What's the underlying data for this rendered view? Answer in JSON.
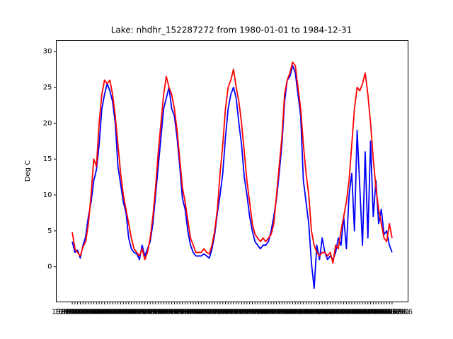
{
  "chart_data": {
    "type": "line",
    "title": "Lake: nhdhr_152287272 from 1980-01-01 to 1984-12-31",
    "y_label": "Deg C",
    "categories": [
      "1980-01-01",
      "1980-01-16",
      "1980-02-01",
      "1980-02-16",
      "1980-03-01",
      "1980-03-16",
      "1980-04-01",
      "1980-04-16",
      "1980-05-01",
      "1980-05-16",
      "1980-06-01",
      "1980-06-16",
      "1980-07-01",
      "1980-07-16",
      "1980-08-01",
      "1980-08-16",
      "1980-09-01",
      "1980-09-16",
      "1980-10-01",
      "1980-10-16",
      "1980-11-01",
      "1980-11-16",
      "1980-12-01",
      "1980-12-16",
      "1981-01-01",
      "1981-01-16",
      "1981-02-01",
      "1981-02-16",
      "1981-03-01",
      "1981-03-16",
      "1981-04-01",
      "1981-04-16",
      "1981-05-01",
      "1981-05-16",
      "1981-06-01",
      "1981-06-16",
      "1981-07-01",
      "1981-07-16",
      "1981-08-01",
      "1981-08-16",
      "1981-09-01",
      "1981-09-16",
      "1981-10-01",
      "1981-10-16",
      "1981-11-01",
      "1981-11-16",
      "1981-12-01",
      "1981-12-16",
      "1982-01-01",
      "1982-01-16",
      "1982-02-01",
      "1982-02-16",
      "1982-03-01",
      "1982-03-16",
      "1982-04-01",
      "1982-04-16",
      "1982-05-01",
      "1982-05-16",
      "1982-06-01",
      "1982-06-16",
      "1982-07-01",
      "1982-07-16",
      "1982-08-01",
      "1982-08-16",
      "1982-09-01",
      "1982-09-16",
      "1982-10-01",
      "1982-10-16",
      "1982-11-01",
      "1982-11-16",
      "1982-12-01",
      "1982-12-16",
      "1983-01-01",
      "1983-01-16",
      "1983-02-01",
      "1983-02-16",
      "1983-03-01",
      "1983-03-16",
      "1983-04-01",
      "1983-04-16",
      "1983-05-01",
      "1983-05-16",
      "1983-06-01",
      "1983-06-16",
      "1983-07-01",
      "1983-07-16",
      "1983-08-01",
      "1983-08-16",
      "1983-09-01",
      "1983-09-16",
      "1983-10-01",
      "1983-10-16",
      "1983-11-01",
      "1983-11-16",
      "1983-12-01",
      "1983-12-16",
      "1984-01-01",
      "1984-01-16",
      "1984-02-01",
      "1984-02-16",
      "1984-03-01",
      "1984-03-16",
      "1984-04-01",
      "1984-04-16",
      "1984-05-01",
      "1984-05-16",
      "1984-06-01",
      "1984-06-16",
      "1984-07-01",
      "1984-07-16",
      "1984-08-01",
      "1984-08-16",
      "1984-09-01",
      "1984-09-16",
      "1984-10-01",
      "1984-10-16",
      "1984-11-01",
      "1984-11-16",
      "1984-12-01",
      "1984-12-16"
    ],
    "series": [
      {
        "color": "#0000ff",
        "values": [
          3.5,
          2.0,
          2.3,
          1.2,
          3.0,
          4.2,
          7.0,
          9.0,
          12.0,
          13.5,
          17.0,
          22.0,
          24.0,
          25.5,
          24.5,
          23.0,
          20.0,
          14.0,
          11.5,
          9.0,
          7.5,
          4.0,
          2.5,
          2.0,
          1.8,
          1.0,
          3.0,
          1.5,
          2.5,
          3.5,
          6.0,
          10.0,
          14.0,
          18.0,
          22.0,
          23.5,
          25.0,
          22.0,
          21.0,
          18.0,
          14.0,
          9.5,
          8.0,
          5.0,
          3.0,
          2.0,
          1.5,
          1.5,
          1.5,
          1.8,
          1.5,
          1.2,
          2.5,
          4.5,
          7.5,
          10.0,
          13.0,
          18.0,
          22.0,
          24.0,
          25.0,
          23.5,
          20.0,
          17.0,
          12.5,
          10.0,
          7.0,
          5.0,
          3.5,
          3.0,
          2.5,
          3.0,
          3.0,
          3.5,
          5.0,
          7.0,
          9.5,
          13.0,
          17.0,
          23.0,
          26.0,
          26.5,
          28.0,
          27.0,
          24.0,
          21.0,
          12.0,
          9.0,
          6.0,
          0.5,
          -3.0,
          3.0,
          1.0,
          4.0,
          2.0,
          1.0,
          1.5,
          1.0,
          2.0,
          4.0,
          3.0,
          7.0,
          2.5,
          10.0,
          13.0,
          5.0,
          19.0,
          11.0,
          3.0,
          16.0,
          4.0,
          17.5,
          7.0,
          12.0,
          6.0,
          8.0,
          4.5,
          5.0,
          3.0,
          2.0
        ]
      },
      {
        "color": "#ff0000",
        "values": [
          4.8,
          2.5,
          2.0,
          1.5,
          2.8,
          3.5,
          6.0,
          10.0,
          15.0,
          14.0,
          20.0,
          24.0,
          26.0,
          25.5,
          26.0,
          24.0,
          21.0,
          17.0,
          13.0,
          10.0,
          8.0,
          6.0,
          4.0,
          2.5,
          2.0,
          1.5,
          2.5,
          1.0,
          2.0,
          4.0,
          7.0,
          11.0,
          16.0,
          20.0,
          24.0,
          26.5,
          25.0,
          24.0,
          22.0,
          19.0,
          15.0,
          11.0,
          9.0,
          6.5,
          4.0,
          3.0,
          2.0,
          2.0,
          2.0,
          2.5,
          2.0,
          1.8,
          3.0,
          5.0,
          8.0,
          13.0,
          17.0,
          22.0,
          25.0,
          26.0,
          27.5,
          25.0,
          23.0,
          20.0,
          16.0,
          12.0,
          9.0,
          6.0,
          4.5,
          4.0,
          3.5,
          4.0,
          3.5,
          4.0,
          4.5,
          6.0,
          10.0,
          14.0,
          18.0,
          24.0,
          26.0,
          27.0,
          28.5,
          28.0,
          25.0,
          22.0,
          17.0,
          13.0,
          10.0,
          5.0,
          3.0,
          2.0,
          1.5,
          2.0,
          2.0,
          1.5,
          2.0,
          0.5,
          3.0,
          2.5,
          5.0,
          7.0,
          9.0,
          12.0,
          17.0,
          22.0,
          25.0,
          24.5,
          25.5,
          27.0,
          24.0,
          20.0,
          15.0,
          11.0,
          8.0,
          6.0,
          4.0,
          3.5,
          6.0,
          4.0
        ]
      }
    ],
    "ylim": [
      -4.9,
      31.5
    ],
    "yticks": [
      0,
      5,
      10,
      15,
      20,
      25,
      30
    ]
  }
}
